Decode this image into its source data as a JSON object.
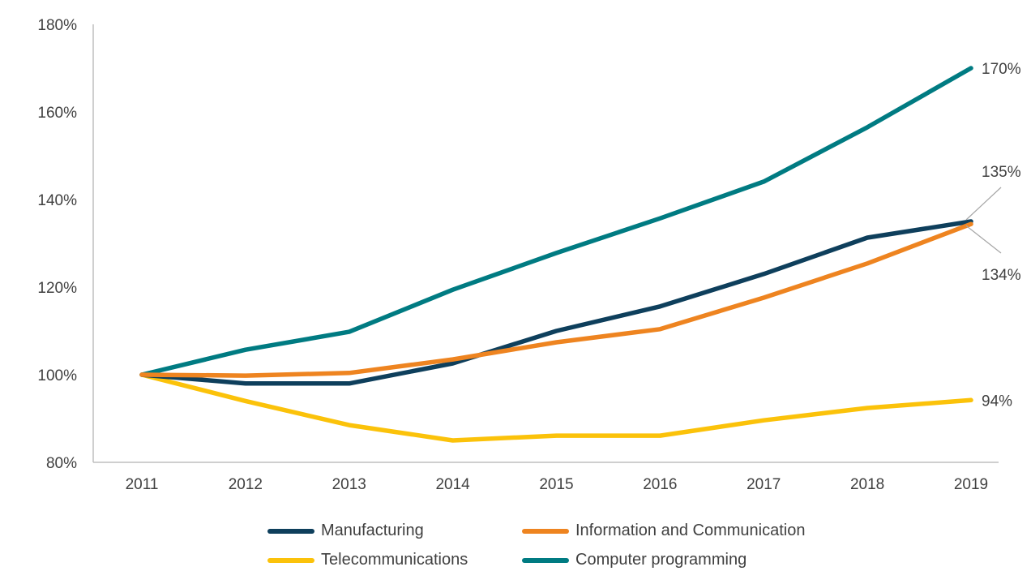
{
  "chart_data": {
    "type": "line",
    "title": "",
    "xlabel": "",
    "ylabel": "",
    "x": [
      "2011",
      "2012",
      "2013",
      "2014",
      "2015",
      "2016",
      "2017",
      "2018",
      "2019"
    ],
    "ylim": [
      80,
      180
    ],
    "yticks": [
      80,
      100,
      120,
      140,
      160,
      180
    ],
    "ytick_labels": [
      "80%",
      "100%",
      "120%",
      "140%",
      "160%",
      "180%"
    ],
    "grid": false,
    "legend_position": "bottom",
    "series": [
      {
        "name": "Manufacturing",
        "color": "#0e3f5c",
        "values": [
          100,
          98,
          98,
          102.6,
          110,
          115.6,
          123,
          131.3,
          135
        ],
        "end_label": "135%"
      },
      {
        "name": "Information and Communication",
        "color": "#ee8420",
        "values": [
          100,
          99.8,
          100.4,
          103.5,
          107.4,
          110.4,
          117.6,
          125.4,
          134.4
        ],
        "end_label": "134%"
      },
      {
        "name": "Telecommunications",
        "color": "#fbc20a",
        "values": [
          100,
          94,
          88.5,
          85,
          86.1,
          86.1,
          89.6,
          92.4,
          94.2
        ],
        "end_label": "94%"
      },
      {
        "name": "Computer programming",
        "color": "#007b82",
        "values": [
          100,
          105.7,
          109.8,
          119.4,
          127.8,
          135.7,
          144.1,
          156.5,
          170
        ],
        "end_label": "170%"
      }
    ]
  }
}
